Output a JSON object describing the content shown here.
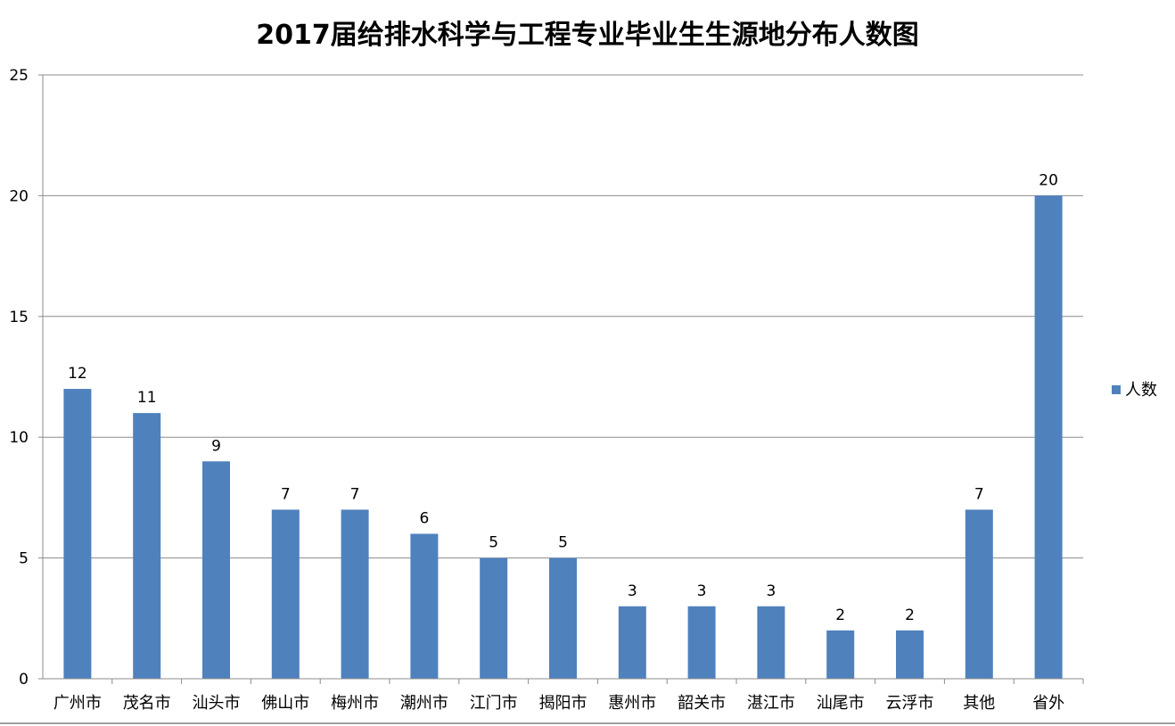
{
  "chart_data": {
    "type": "bar",
    "title": "2017届给排水科学与工程专业毕业生生源地分布人数图",
    "xlabel": "",
    "ylabel": "",
    "categories": [
      "广州市",
      "茂名市",
      "汕头市",
      "佛山市",
      "梅州市",
      "潮州市",
      "江门市",
      "揭阳市",
      "惠州市",
      "韶关市",
      "湛江市",
      "汕尾市",
      "云浮市",
      "其他",
      "省外"
    ],
    "series": [
      {
        "name": "人数",
        "values": [
          12,
          11,
          9,
          7,
          7,
          6,
          5,
          5,
          3,
          3,
          3,
          2,
          2,
          7,
          20
        ],
        "color": "#4f81bd"
      }
    ],
    "ylim": [
      0,
      25
    ],
    "yticks": [
      0,
      5,
      10,
      15,
      20,
      25
    ],
    "grid": true,
    "legend_position": "right",
    "data_labels": true
  }
}
